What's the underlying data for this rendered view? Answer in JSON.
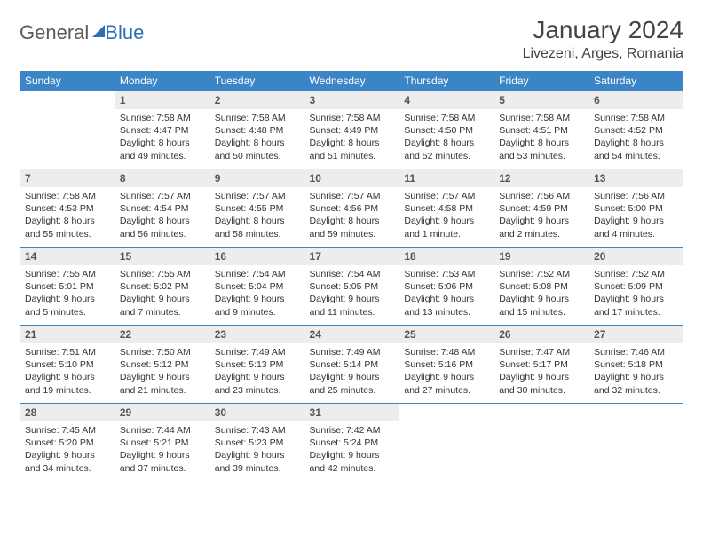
{
  "brand": {
    "part1": "General",
    "part2": "Blue"
  },
  "title": "January 2024",
  "location": "Livezeni, Arges, Romania",
  "colors": {
    "header_bg": "#3b85c6",
    "header_text": "#ffffff",
    "daynum_bg": "#ededed",
    "border": "#3b85c6",
    "text": "#333333",
    "brand_gray": "#5a5a5a",
    "brand_blue": "#2a72b5"
  },
  "typography": {
    "title_fontsize": 28,
    "location_fontsize": 16,
    "dayhead_fontsize": 12,
    "daynum_fontsize": 12,
    "body_fontsize": 10.5
  },
  "day_headers": [
    "Sunday",
    "Monday",
    "Tuesday",
    "Wednesday",
    "Thursday",
    "Friday",
    "Saturday"
  ],
  "weeks": [
    [
      {
        "n": "",
        "sr": "",
        "ss": "",
        "dl": "",
        "empty": true
      },
      {
        "n": "1",
        "sr": "Sunrise: 7:58 AM",
        "ss": "Sunset: 4:47 PM",
        "dl": "Daylight: 8 hours and 49 minutes."
      },
      {
        "n": "2",
        "sr": "Sunrise: 7:58 AM",
        "ss": "Sunset: 4:48 PM",
        "dl": "Daylight: 8 hours and 50 minutes."
      },
      {
        "n": "3",
        "sr": "Sunrise: 7:58 AM",
        "ss": "Sunset: 4:49 PM",
        "dl": "Daylight: 8 hours and 51 minutes."
      },
      {
        "n": "4",
        "sr": "Sunrise: 7:58 AM",
        "ss": "Sunset: 4:50 PM",
        "dl": "Daylight: 8 hours and 52 minutes."
      },
      {
        "n": "5",
        "sr": "Sunrise: 7:58 AM",
        "ss": "Sunset: 4:51 PM",
        "dl": "Daylight: 8 hours and 53 minutes."
      },
      {
        "n": "6",
        "sr": "Sunrise: 7:58 AM",
        "ss": "Sunset: 4:52 PM",
        "dl": "Daylight: 8 hours and 54 minutes."
      }
    ],
    [
      {
        "n": "7",
        "sr": "Sunrise: 7:58 AM",
        "ss": "Sunset: 4:53 PM",
        "dl": "Daylight: 8 hours and 55 minutes."
      },
      {
        "n": "8",
        "sr": "Sunrise: 7:57 AM",
        "ss": "Sunset: 4:54 PM",
        "dl": "Daylight: 8 hours and 56 minutes."
      },
      {
        "n": "9",
        "sr": "Sunrise: 7:57 AM",
        "ss": "Sunset: 4:55 PM",
        "dl": "Daylight: 8 hours and 58 minutes."
      },
      {
        "n": "10",
        "sr": "Sunrise: 7:57 AM",
        "ss": "Sunset: 4:56 PM",
        "dl": "Daylight: 8 hours and 59 minutes."
      },
      {
        "n": "11",
        "sr": "Sunrise: 7:57 AM",
        "ss": "Sunset: 4:58 PM",
        "dl": "Daylight: 9 hours and 1 minute."
      },
      {
        "n": "12",
        "sr": "Sunrise: 7:56 AM",
        "ss": "Sunset: 4:59 PM",
        "dl": "Daylight: 9 hours and 2 minutes."
      },
      {
        "n": "13",
        "sr": "Sunrise: 7:56 AM",
        "ss": "Sunset: 5:00 PM",
        "dl": "Daylight: 9 hours and 4 minutes."
      }
    ],
    [
      {
        "n": "14",
        "sr": "Sunrise: 7:55 AM",
        "ss": "Sunset: 5:01 PM",
        "dl": "Daylight: 9 hours and 5 minutes."
      },
      {
        "n": "15",
        "sr": "Sunrise: 7:55 AM",
        "ss": "Sunset: 5:02 PM",
        "dl": "Daylight: 9 hours and 7 minutes."
      },
      {
        "n": "16",
        "sr": "Sunrise: 7:54 AM",
        "ss": "Sunset: 5:04 PM",
        "dl": "Daylight: 9 hours and 9 minutes."
      },
      {
        "n": "17",
        "sr": "Sunrise: 7:54 AM",
        "ss": "Sunset: 5:05 PM",
        "dl": "Daylight: 9 hours and 11 minutes."
      },
      {
        "n": "18",
        "sr": "Sunrise: 7:53 AM",
        "ss": "Sunset: 5:06 PM",
        "dl": "Daylight: 9 hours and 13 minutes."
      },
      {
        "n": "19",
        "sr": "Sunrise: 7:52 AM",
        "ss": "Sunset: 5:08 PM",
        "dl": "Daylight: 9 hours and 15 minutes."
      },
      {
        "n": "20",
        "sr": "Sunrise: 7:52 AM",
        "ss": "Sunset: 5:09 PM",
        "dl": "Daylight: 9 hours and 17 minutes."
      }
    ],
    [
      {
        "n": "21",
        "sr": "Sunrise: 7:51 AM",
        "ss": "Sunset: 5:10 PM",
        "dl": "Daylight: 9 hours and 19 minutes."
      },
      {
        "n": "22",
        "sr": "Sunrise: 7:50 AM",
        "ss": "Sunset: 5:12 PM",
        "dl": "Daylight: 9 hours and 21 minutes."
      },
      {
        "n": "23",
        "sr": "Sunrise: 7:49 AM",
        "ss": "Sunset: 5:13 PM",
        "dl": "Daylight: 9 hours and 23 minutes."
      },
      {
        "n": "24",
        "sr": "Sunrise: 7:49 AM",
        "ss": "Sunset: 5:14 PM",
        "dl": "Daylight: 9 hours and 25 minutes."
      },
      {
        "n": "25",
        "sr": "Sunrise: 7:48 AM",
        "ss": "Sunset: 5:16 PM",
        "dl": "Daylight: 9 hours and 27 minutes."
      },
      {
        "n": "26",
        "sr": "Sunrise: 7:47 AM",
        "ss": "Sunset: 5:17 PM",
        "dl": "Daylight: 9 hours and 30 minutes."
      },
      {
        "n": "27",
        "sr": "Sunrise: 7:46 AM",
        "ss": "Sunset: 5:18 PM",
        "dl": "Daylight: 9 hours and 32 minutes."
      }
    ],
    [
      {
        "n": "28",
        "sr": "Sunrise: 7:45 AM",
        "ss": "Sunset: 5:20 PM",
        "dl": "Daylight: 9 hours and 34 minutes."
      },
      {
        "n": "29",
        "sr": "Sunrise: 7:44 AM",
        "ss": "Sunset: 5:21 PM",
        "dl": "Daylight: 9 hours and 37 minutes."
      },
      {
        "n": "30",
        "sr": "Sunrise: 7:43 AM",
        "ss": "Sunset: 5:23 PM",
        "dl": "Daylight: 9 hours and 39 minutes."
      },
      {
        "n": "31",
        "sr": "Sunrise: 7:42 AM",
        "ss": "Sunset: 5:24 PM",
        "dl": "Daylight: 9 hours and 42 minutes."
      },
      {
        "n": "",
        "sr": "",
        "ss": "",
        "dl": "",
        "empty": true
      },
      {
        "n": "",
        "sr": "",
        "ss": "",
        "dl": "",
        "empty": true
      },
      {
        "n": "",
        "sr": "",
        "ss": "",
        "dl": "",
        "empty": true
      }
    ]
  ]
}
